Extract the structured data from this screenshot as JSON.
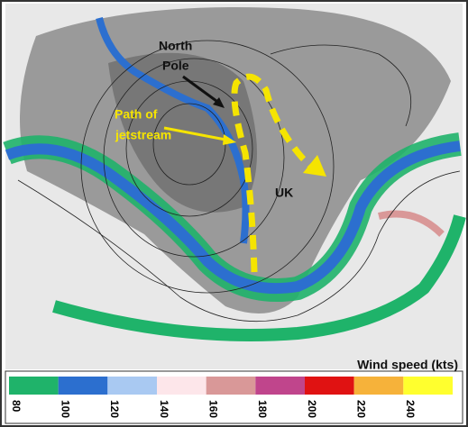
{
  "map": {
    "annotations": {
      "north_pole": [
        "North",
        "Pole"
      ],
      "jetstream_path": [
        "Path of",
        "jetstream"
      ],
      "uk": "UK"
    },
    "legend": {
      "title": "Wind speed (kts)",
      "ticks": [
        80,
        100,
        120,
        140,
        160,
        180,
        200,
        220,
        240
      ],
      "colors": [
        "#1fb36a",
        "#2c6fcf",
        "#a9c9f2",
        "#fde6ea",
        "#d99898",
        "#c0458c",
        "#e01212",
        "#f6b23a",
        "#ffff2e"
      ]
    }
  }
}
